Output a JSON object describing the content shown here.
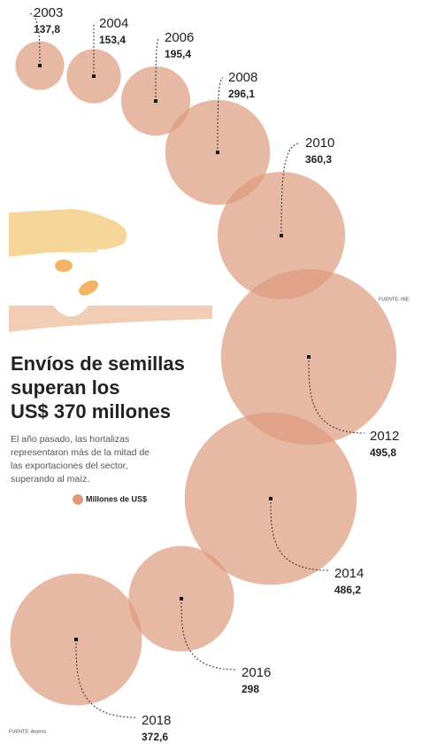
{
  "chart_data": {
    "type": "bubble",
    "title_lines": [
      "Envíos de semillas",
      "superan los",
      "US$ 370 millones"
    ],
    "subtitle_lines": [
      "El año pasado, las hortalizas",
      "representaron más de la mitad de",
      "las exportaciones del sector,",
      "superando al maíz."
    ],
    "legend": "Millones de US$",
    "sources": [
      "FUENTE: INE.",
      "FUENTE: Anpros."
    ],
    "color": "#dd9a7c",
    "categories": [
      "2003",
      "2004",
      "2006",
      "2008",
      "2010",
      "2012",
      "2014",
      "2016",
      "2018"
    ],
    "values": [
      137.8,
      153.4,
      195.4,
      296.1,
      360.3,
      495.8,
      486.2,
      298,
      372.6
    ],
    "value_labels": [
      "137,8",
      "153,4",
      "195,4",
      "296,1",
      "360,3",
      "495,8",
      "486,2",
      "298",
      "372,6"
    ]
  }
}
